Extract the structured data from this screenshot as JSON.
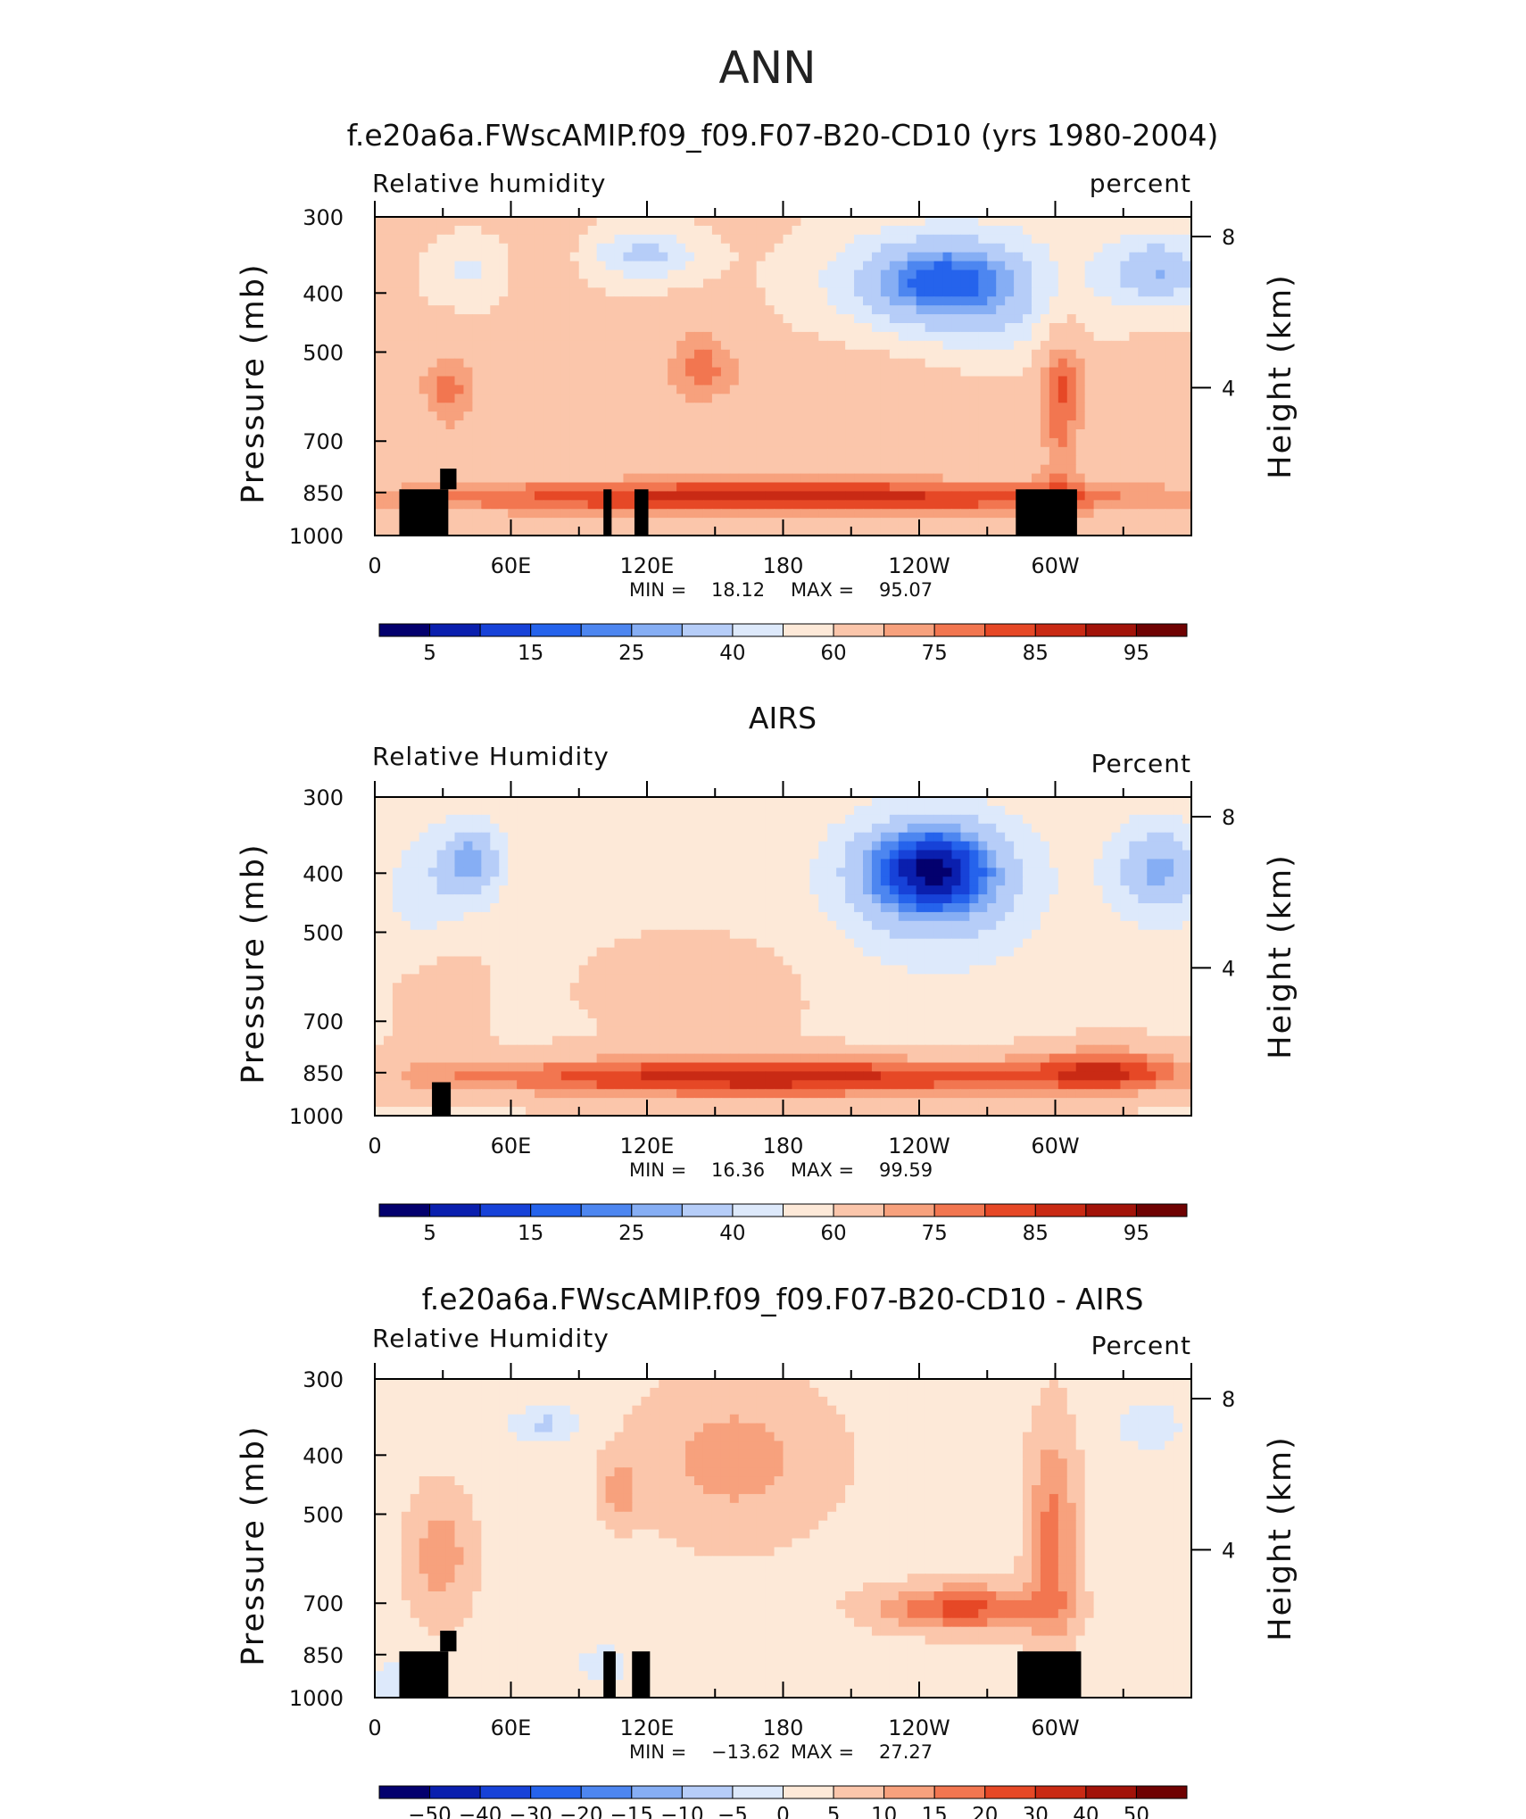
{
  "page_title": "ANN",
  "chart_data": [
    {
      "type": "heatmap",
      "title": "f.e20a6a.FWscAMIP.f09_f09.F07-B20-CD10 (yrs 1980-2004)",
      "left_label": "Relative humidity",
      "right_label": "percent",
      "ylabel": "Pressure (mb)",
      "y2label": "Height (km)",
      "yticks": [
        "300",
        "400",
        "500",
        "700",
        "850",
        "1000"
      ],
      "y2ticks": [
        "8",
        "4"
      ],
      "xticks": [
        "0",
        "60E",
        "120E",
        "180",
        "120W",
        "60W"
      ],
      "stats": {
        "min": "18.12",
        "max": "95.07"
      },
      "colorbar": {
        "labels": [
          "5",
          "15",
          "25",
          "40",
          "60",
          "75",
          "85",
          "95"
        ],
        "colors": [
          "#03006e",
          "#0a1fae",
          "#1742d8",
          "#2563ec",
          "#4d86f0",
          "#86aef4",
          "#b6cdf8",
          "#dde9fb",
          "#fde9d8",
          "#fbc6ab",
          "#f7a17d",
          "#f27650",
          "#e64826",
          "#c92a14",
          "#a21309",
          "#6f0202"
        ]
      },
      "field": {
        "base": 62,
        "blobs": [
          [
            0.33,
            0.12,
            0.065,
            0.08,
            -26
          ],
          [
            0.12,
            0.17,
            0.05,
            0.1,
            -14
          ],
          [
            0.68,
            0.2,
            0.12,
            0.16,
            -40
          ],
          [
            0.96,
            0.17,
            0.07,
            0.12,
            -32
          ],
          [
            0.77,
            0.28,
            0.1,
            0.25,
            -14
          ],
          [
            0.5,
            0.5,
            0.55,
            0.1,
            6
          ],
          [
            0.5,
            0.88,
            0.5,
            0.06,
            26
          ],
          [
            0.09,
            0.56,
            0.035,
            0.14,
            12
          ],
          [
            0.84,
            0.55,
            0.03,
            0.3,
            18
          ],
          [
            0.4,
            0.45,
            0.04,
            0.15,
            10
          ],
          [
            0.2,
            0.12,
            0.04,
            0.25,
            8
          ]
        ]
      },
      "masks": [
        [
          0.03,
          0.855,
          0.09,
          1.0
        ],
        [
          0.08,
          0.79,
          0.1,
          0.855
        ],
        [
          0.28,
          0.855,
          0.29,
          1.0
        ],
        [
          0.318,
          0.855,
          0.335,
          1.0
        ],
        [
          0.785,
          0.855,
          0.86,
          1.0
        ]
      ]
    },
    {
      "type": "heatmap",
      "title": "AIRS",
      "left_label": "Relative Humidity",
      "right_label": "Percent",
      "ylabel": "Pressure (mb)",
      "y2label": "Height (km)",
      "yticks": [
        "300",
        "400",
        "500",
        "700",
        "850",
        "1000"
      ],
      "y2ticks": [
        "8",
        "4"
      ],
      "xticks": [
        "0",
        "60E",
        "120E",
        "180",
        "120W",
        "60W"
      ],
      "stats": {
        "min": "16.36",
        "max": "99.59"
      },
      "colorbar": {
        "labels": [
          "5",
          "15",
          "25",
          "40",
          "60",
          "75",
          "85",
          "95"
        ],
        "colors": [
          "#03006e",
          "#0a1fae",
          "#1742d8",
          "#2563ec",
          "#4d86f0",
          "#86aef4",
          "#b6cdf8",
          "#dde9fb",
          "#fde9d8",
          "#fbc6ab",
          "#f7a17d",
          "#f27650",
          "#e64826",
          "#c92a14",
          "#a21309",
          "#6f0202"
        ]
      },
      "field": {
        "base": 58,
        "blobs": [
          [
            0.12,
            0.2,
            0.04,
            0.13,
            -30
          ],
          [
            0.06,
            0.3,
            0.05,
            0.2,
            -14
          ],
          [
            0.68,
            0.22,
            0.1,
            0.17,
            -44
          ],
          [
            0.96,
            0.23,
            0.06,
            0.16,
            -30
          ],
          [
            0.69,
            0.35,
            0.13,
            0.25,
            -14
          ],
          [
            0.48,
            0.88,
            0.45,
            0.07,
            30
          ],
          [
            0.4,
            0.6,
            0.15,
            0.18,
            6
          ],
          [
            0.08,
            0.65,
            0.05,
            0.2,
            10
          ],
          [
            0.9,
            0.85,
            0.1,
            0.08,
            18
          ]
        ]
      },
      "masks": [
        [
          0.07,
          0.895,
          0.093,
          1.0
        ]
      ]
    },
    {
      "type": "heatmap",
      "title": "f.e20a6a.FWscAMIP.f09_f09.F07-B20-CD10 - AIRS",
      "left_label": "Relative Humidity",
      "right_label": "Percent",
      "ylabel": "Pressure (mb)",
      "y2label": "Height (km)",
      "yticks": [
        "300",
        "400",
        "500",
        "700",
        "850",
        "1000"
      ],
      "y2ticks": [
        "8",
        "4"
      ],
      "xticks": [
        "0",
        "60E",
        "120E",
        "180",
        "120W",
        "60W"
      ],
      "stats": {
        "min": "−13.62",
        "max": "27.27"
      },
      "colorbar": {
        "labels": [
          "−50",
          "−40",
          "−30",
          "−20",
          "−15",
          "−10",
          "−5",
          "0",
          "5",
          "10",
          "15",
          "20",
          "30",
          "40",
          "50"
        ],
        "colors": [
          "#03006e",
          "#0a1fae",
          "#1742d8",
          "#2563ec",
          "#4d86f0",
          "#86aef4",
          "#b6cdf8",
          "#dde9fb",
          "#fde9d8",
          "#fbc6ab",
          "#f7a17d",
          "#f27650",
          "#e64826",
          "#c92a14",
          "#a21309",
          "#6f0202"
        ]
      },
      "field": {
        "base": 3,
        "blobs": [
          [
            0.21,
            0.14,
            0.05,
            0.05,
            -9
          ],
          [
            0.04,
            0.95,
            0.05,
            0.08,
            -6
          ],
          [
            0.28,
            0.9,
            0.04,
            0.08,
            -5
          ],
          [
            0.95,
            0.15,
            0.05,
            0.1,
            -5
          ],
          [
            0.44,
            0.25,
            0.12,
            0.25,
            9
          ],
          [
            0.72,
            0.72,
            0.1,
            0.07,
            19
          ],
          [
            0.83,
            0.5,
            0.03,
            0.35,
            14
          ],
          [
            0.08,
            0.55,
            0.04,
            0.2,
            10
          ],
          [
            0.3,
            0.35,
            0.02,
            0.1,
            9
          ]
        ]
      },
      "masks": [
        [
          0.03,
          0.855,
          0.09,
          1.0
        ],
        [
          0.08,
          0.79,
          0.1,
          0.855
        ],
        [
          0.28,
          0.855,
          0.295,
          1.0
        ],
        [
          0.315,
          0.855,
          0.337,
          1.0
        ],
        [
          0.787,
          0.855,
          0.865,
          1.0
        ]
      ]
    }
  ]
}
